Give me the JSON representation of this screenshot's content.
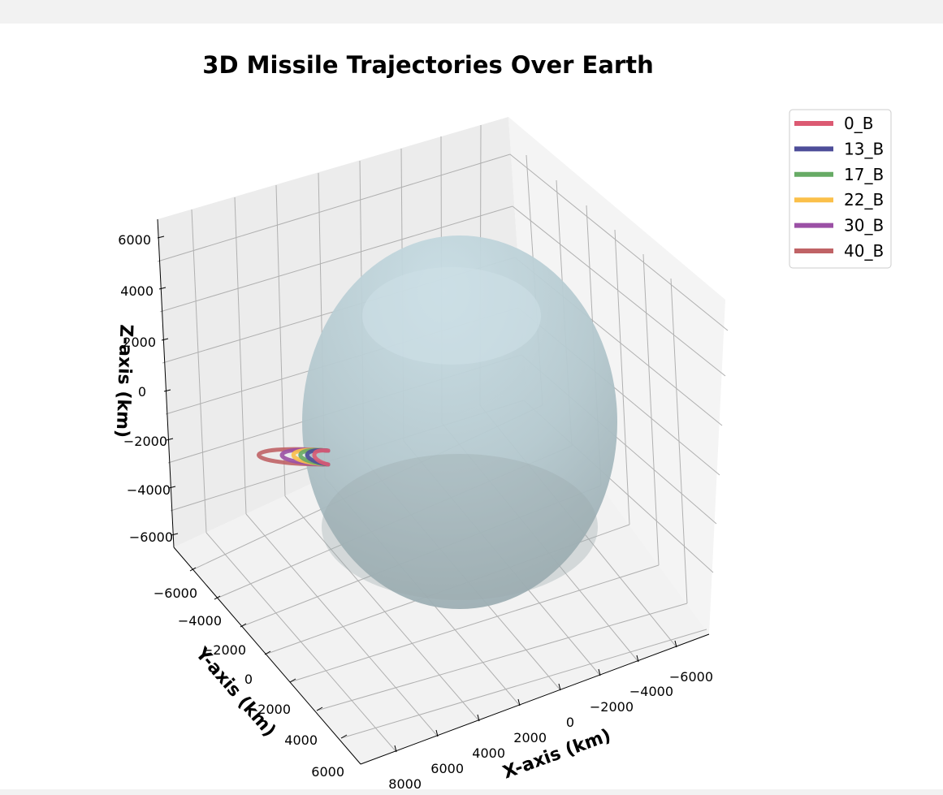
{
  "chart_data": {
    "type": "line3d",
    "title": "3D Missile Trajectories Over Earth",
    "xlabel": "X-axis (km)",
    "ylabel": "Y-axis (km)",
    "zlabel": "Z-axis (km)",
    "x_ticks": [
      "−6000",
      "−4000",
      "−2000",
      "0",
      "2000",
      "4000",
      "6000",
      "8000"
    ],
    "y_ticks": [
      "−6000",
      "−4000",
      "−2000",
      "0",
      "2000",
      "4000",
      "6000"
    ],
    "z_ticks": [
      "6000",
      "4000",
      "2000",
      "0",
      "−2000",
      "−4000",
      "−6000"
    ],
    "grid": true,
    "legend_position": "upper-right",
    "surface": {
      "name": "Earth",
      "radius_km": 6371,
      "color": "#b7ccd3"
    },
    "series": [
      {
        "name": "0_B",
        "color": "#dc5a72"
      },
      {
        "name": "13_B",
        "color": "#4d4d99"
      },
      {
        "name": "17_B",
        "color": "#67ab65"
      },
      {
        "name": "22_B",
        "color": "#fbc04a"
      },
      {
        "name": "30_B",
        "color": "#9b50a5"
      },
      {
        "name": "40_B",
        "color": "#c06366"
      }
    ]
  }
}
